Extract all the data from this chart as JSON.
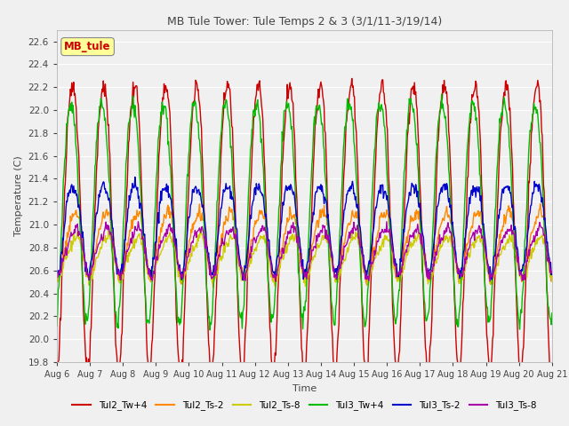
{
  "title": "MB Tule Tower: Tule Temps 2 & 3 (3/1/11-3/19/14)",
  "xlabel": "Time",
  "ylabel": "Temperature (C)",
  "ylim": [
    19.8,
    22.7
  ],
  "yticks": [
    19.8,
    20.0,
    20.2,
    20.4,
    20.6,
    20.8,
    21.0,
    21.2,
    21.4,
    21.6,
    21.8,
    22.0,
    22.2,
    22.4,
    22.6
  ],
  "xtick_labels": [
    "Aug 6",
    "Aug 7",
    "Aug 8",
    "Aug 9",
    "Aug 10",
    "Aug 11",
    "Aug 12",
    "Aug 13",
    "Aug 14",
    "Aug 15",
    "Aug 16",
    "Aug 17",
    "Aug 18",
    "Aug 19",
    "Aug 20",
    "Aug 21"
  ],
  "background_color": "#f0f0f0",
  "grid_color": "#ffffff",
  "annotation_text": "MB_tule",
  "annotation_color": "#cc0000",
  "annotation_bg": "#ffff99",
  "lines": [
    {
      "label": "Tul2_Tw+4",
      "color": "#cc0000",
      "lw": 1.0
    },
    {
      "label": "Tul2_Ts-2",
      "color": "#ff8800",
      "lw": 1.0
    },
    {
      "label": "Tul2_Ts-8",
      "color": "#cccc00",
      "lw": 1.0
    },
    {
      "label": "Tul3_Tw+4",
      "color": "#00bb00",
      "lw": 1.0
    },
    {
      "label": "Tul3_Ts-2",
      "color": "#0000cc",
      "lw": 1.0
    },
    {
      "label": "Tul3_Ts-8",
      "color": "#aa00aa",
      "lw": 1.0
    }
  ]
}
